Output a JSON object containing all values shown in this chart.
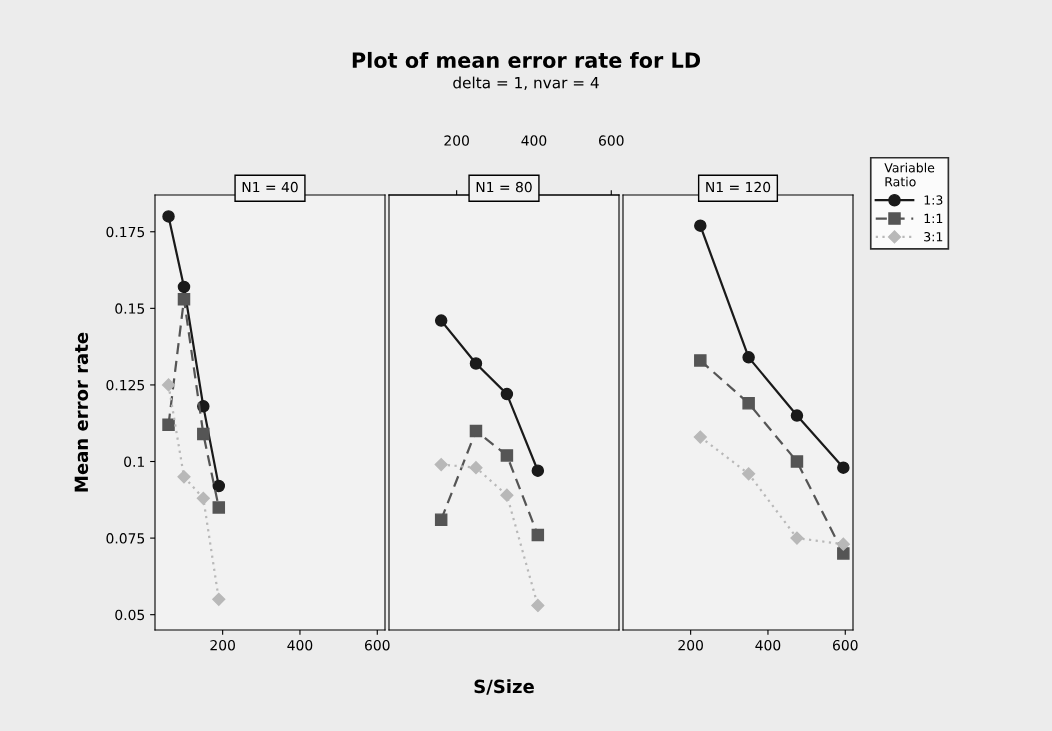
{
  "chart_data": [
    {
      "type": "line",
      "title": "N1 = 40",
      "ylabel": "Mean error rate",
      "xlim": [
        25,
        620
      ],
      "xticks": [
        200,
        400,
        600
      ],
      "ylim": [
        0.045,
        0.187
      ],
      "yticks": [
        0.05,
        0.075,
        0.1,
        0.125,
        0.15,
        0.175
      ],
      "grid": false,
      "legend": false,
      "x": [
        60,
        100,
        150,
        190
      ],
      "series": [
        {
          "color": "#1a1a1a",
          "marker": "circle",
          "line_style": "solid",
          "values": [
            0.18,
            0.157,
            0.118,
            0.092
          ]
        },
        {
          "color": "#555555",
          "marker": "square",
          "line_style": "dashed",
          "values": [
            0.112,
            0.153,
            0.109,
            0.085
          ]
        },
        {
          "color": "#b8b8b8",
          "marker": "diamond",
          "line_style": "dotted",
          "values": [
            0.125,
            0.095,
            0.088,
            0.055
          ]
        }
      ]
    },
    {
      "type": "line",
      "title": "N1 = 80",
      "xlabel": "S/Size",
      "annotations": [
        "Plot of mean error rate for LD",
        "delta = 1, nvar = 4"
      ],
      "xlim": [
        25,
        620
      ],
      "x2lim": [
        25,
        620
      ],
      "x2ticks": [
        200,
        400,
        600
      ],
      "ylim": [
        0.045,
        0.187
      ],
      "tick_labels": false,
      "grid": false,
      "legend": false,
      "x": [
        160,
        250,
        330,
        410
      ],
      "series": [
        {
          "color": "#1a1a1a",
          "marker": "circle",
          "line_style": "solid",
          "values": [
            0.146,
            0.132,
            0.122,
            0.097
          ]
        },
        {
          "color": "#555555",
          "marker": "square",
          "line_style": "dashed",
          "values": [
            0.081,
            0.11,
            0.102,
            0.076
          ]
        },
        {
          "color": "#b8b8b8",
          "marker": "diamond",
          "line_style": "dotted",
          "values": [
            0.099,
            0.098,
            0.089,
            0.053
          ]
        }
      ]
    },
    {
      "type": "line",
      "title": "N1 = 120",
      "legend_title": "Variable\nRatio",
      "xlim": [
        25,
        620
      ],
      "xticks": [
        200,
        400,
        600
      ],
      "ylim": [
        0.045,
        0.187
      ],
      "tick_labels": "x",
      "grid": false,
      "legend": "top right",
      "x": [
        225,
        350,
        475,
        595
      ],
      "series": [
        {
          "name": "1:3",
          "color": "#1a1a1a",
          "marker": "circle",
          "line_style": "solid",
          "values": [
            0.177,
            0.134,
            0.115,
            0.098
          ]
        },
        {
          "name": "1:1",
          "color": "#555555",
          "marker": "square",
          "line_style": "dashed",
          "values": [
            0.133,
            0.119,
            0.1,
            0.07
          ]
        },
        {
          "name": "3:1",
          "color": "#b8b8b8",
          "marker": "diamond",
          "line_style": "dotted",
          "values": [
            0.108,
            0.096,
            0.075,
            0.073
          ]
        }
      ]
    }
  ]
}
